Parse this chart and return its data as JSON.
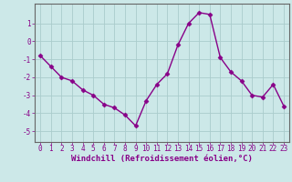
{
  "x": [
    0,
    1,
    2,
    3,
    4,
    5,
    6,
    7,
    8,
    9,
    10,
    11,
    12,
    13,
    14,
    15,
    16,
    17,
    18,
    19,
    20,
    21,
    22,
    23
  ],
  "y": [
    -0.8,
    -1.4,
    -2.0,
    -2.2,
    -2.7,
    -3.0,
    -3.5,
    -3.7,
    -4.1,
    -4.7,
    -3.3,
    -2.4,
    -1.8,
    -0.2,
    1.0,
    1.6,
    1.5,
    -0.9,
    -1.7,
    -2.2,
    -3.0,
    -3.1,
    -2.4,
    -3.6
  ],
  "line_color": "#880088",
  "marker": "D",
  "marker_size": 2.5,
  "bg_color": "#cce8e8",
  "grid_color": "#aacccc",
  "xlabel": "Windchill (Refroidissement éolien,°C)",
  "xlabel_color": "#880088",
  "xlim": [
    -0.5,
    23.5
  ],
  "ylim": [
    -5.6,
    2.1
  ],
  "yticks": [
    1,
    0,
    -1,
    -2,
    -3,
    -4,
    -5
  ],
  "xticks": [
    0,
    1,
    2,
    3,
    4,
    5,
    6,
    7,
    8,
    9,
    10,
    11,
    12,
    13,
    14,
    15,
    16,
    17,
    18,
    19,
    20,
    21,
    22,
    23
  ],
  "tick_color": "#880088",
  "spine_color": "#666666",
  "tick_fontsize": 5.5,
  "ylabel_fontsize": 5.5,
  "xlabel_fontsize": 6.5
}
